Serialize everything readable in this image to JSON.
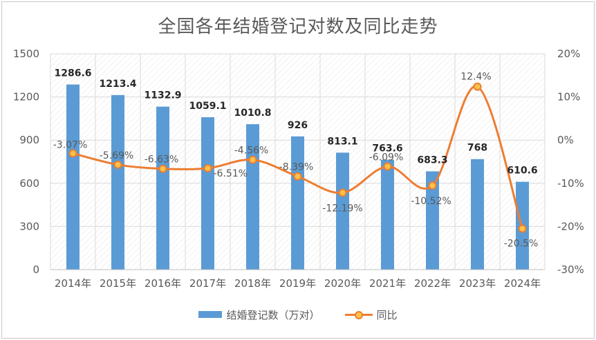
{
  "chart_data": {
    "type": "bar",
    "title": "全国各年结婚登记对数及同比走势",
    "categories": [
      "2014年",
      "2015年",
      "2016年",
      "2017年",
      "2018年",
      "2019年",
      "2020年",
      "2021年",
      "2022年",
      "2023年",
      "2024年"
    ],
    "series": [
      {
        "name": "结婚登记数（万对）",
        "type": "bar",
        "axis": "left",
        "values": [
          1286.6,
          1213.4,
          1132.9,
          1059.1,
          1010.8,
          926,
          813.1,
          763.6,
          683.3,
          768,
          610.6
        ],
        "labels": [
          "1286.6",
          "1213.4",
          "1132.9",
          "1059.1",
          "1010.8",
          "926",
          "813.1",
          "763.6",
          "683.3",
          "768",
          "610.6"
        ],
        "color": "#5b9bd5"
      },
      {
        "name": "同比",
        "type": "line",
        "axis": "right",
        "values": [
          -3.07,
          -5.69,
          -6.63,
          -6.51,
          -4.56,
          -8.39,
          -12.19,
          -6.09,
          -10.52,
          12.4,
          -20.5
        ],
        "labels": [
          "-3.07%",
          "-5.69%",
          "-6.63%",
          "-6.51%",
          "-4.56%",
          "-8.39%",
          "-12.19%",
          "-6.09%",
          "-10.52%",
          "12.4%",
          "-20.5%"
        ],
        "color": "#ed7d31",
        "marker_color": "#f8c24a"
      }
    ],
    "y_left": {
      "range": [
        0,
        1500
      ],
      "ticks": [
        "0",
        "300",
        "600",
        "900",
        "1200",
        "1500"
      ]
    },
    "y_right": {
      "range": [
        -30,
        20
      ],
      "ticks": [
        "-30%",
        "-20%",
        "-10%",
        "0%",
        "10%",
        "20%"
      ]
    },
    "grid": true,
    "legend_position": "bottom"
  }
}
